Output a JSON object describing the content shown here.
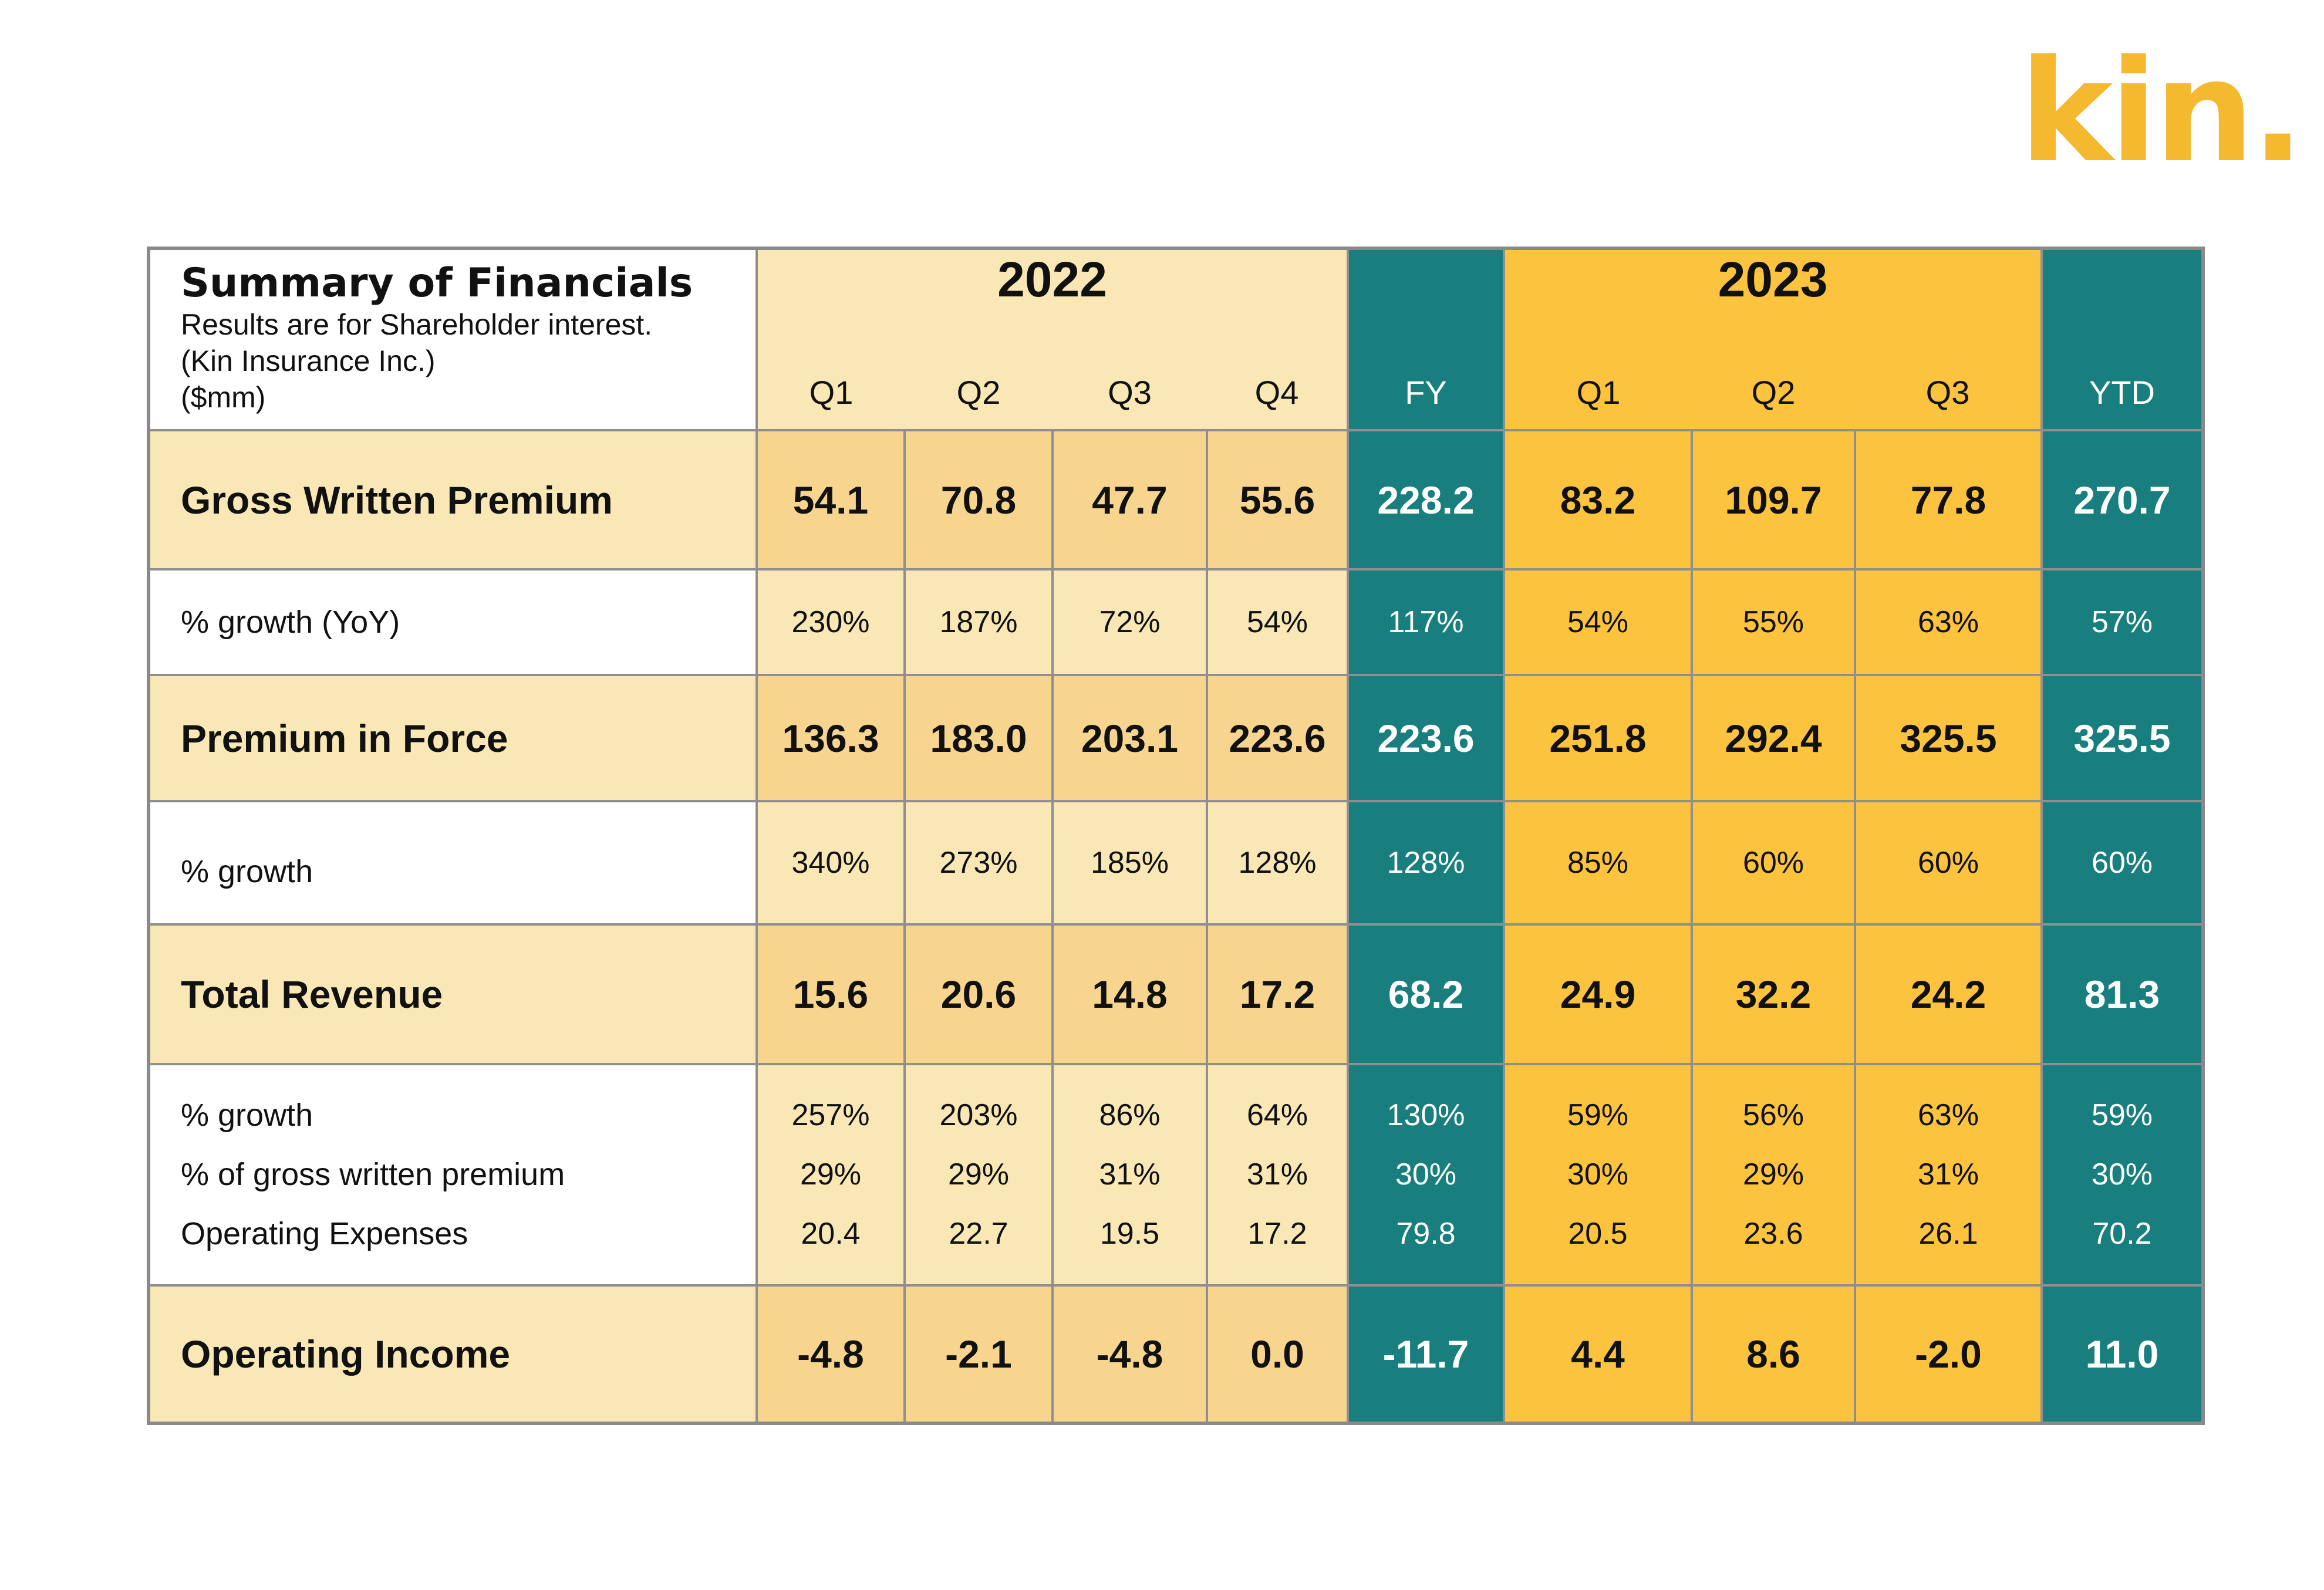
{
  "brand": {
    "logo_text": "kin.",
    "accent": "#F4B92E",
    "teal": "#187F7E",
    "yellow_2023": "#FCC33F"
  },
  "header": {
    "title": "Summary of Financials",
    "subtitle_lines": [
      "Results are for Shareholder interest.",
      "(Kin Insurance Inc.)",
      "($mm)"
    ],
    "year_2022": "2022",
    "year_2023": "2023",
    "columns": [
      "Q1",
      "Q2",
      "Q3",
      "Q4",
      "FY",
      "Q1",
      "Q2",
      "Q3",
      "YTD"
    ]
  },
  "rows": {
    "gwp": {
      "label": "Gross Written Premium",
      "values": [
        "54.1",
        "70.8",
        "47.7",
        "55.6",
        "228.2",
        "83.2",
        "109.7",
        "77.8",
        "270.7"
      ]
    },
    "gwp_growth": {
      "label": "% growth (YoY)",
      "values": [
        "230%",
        "187%",
        "72%",
        "54%",
        "117%",
        "54%",
        "55%",
        "63%",
        "57%"
      ]
    },
    "pif": {
      "label": "Premium in Force",
      "values": [
        "136.3",
        "183.0",
        "203.1",
        "223.6",
        "223.6",
        "251.8",
        "292.4",
        "325.5",
        "325.5"
      ]
    },
    "pif_growth": {
      "label": "% growth",
      "values": [
        "340%",
        "273%",
        "185%",
        "128%",
        "128%",
        "85%",
        "60%",
        "60%",
        "60%"
      ]
    },
    "revenue": {
      "label": "Total Revenue",
      "values": [
        "15.6",
        "20.6",
        "14.8",
        "17.2",
        "68.2",
        "24.9",
        "32.2",
        "24.2",
        "81.3"
      ]
    },
    "rev_growth": {
      "label": "% growth",
      "values": [
        "257%",
        "203%",
        "86%",
        "64%",
        "130%",
        "59%",
        "56%",
        "63%",
        "59%"
      ]
    },
    "rev_pct_gwp": {
      "label": "% of gross written premium",
      "values": [
        "29%",
        "29%",
        "31%",
        "31%",
        "30%",
        "30%",
        "29%",
        "31%",
        "30%"
      ]
    },
    "opex": {
      "label": "Operating Expenses",
      "values": [
        "20.4",
        "22.7",
        "19.5",
        "17.2",
        "79.8",
        "20.5",
        "23.6",
        "26.1",
        "70.2"
      ]
    },
    "op_income": {
      "label": "Operating Income",
      "values": [
        "-4.8",
        "-2.1",
        "-4.8",
        "0.0",
        "-11.7",
        "4.4",
        "8.6",
        "-2.0",
        "11.0"
      ]
    }
  }
}
